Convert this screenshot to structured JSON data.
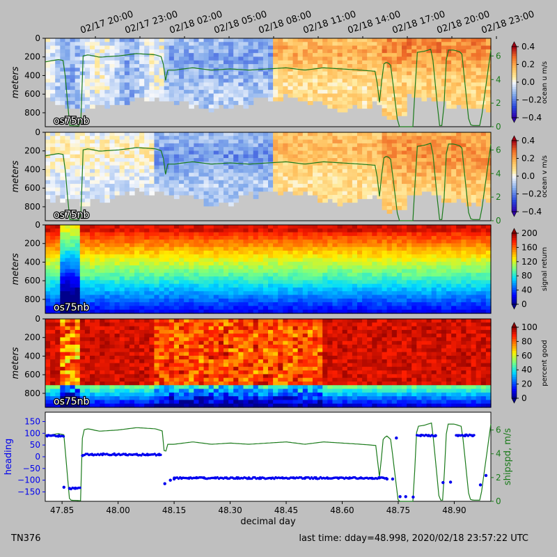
{
  "footer": {
    "cruise": "TN376",
    "last_time": "last time: dday=48.998,  2020/02/18 23:57:22 UTC"
  },
  "time_labels": [
    "02/17 20:00",
    "02/17 23:00",
    "02/18 02:00",
    "02/18 05:00",
    "02/18 08:00",
    "02/18 11:00",
    "02/18 14:00",
    "02/18 17:00",
    "02/18 20:00",
    "02/18 23:00"
  ],
  "panel_tag": "os75nb",
  "depth_ticks": [
    "0",
    "200",
    "400",
    "600",
    "800"
  ],
  "depth_ylabel": "meters",
  "xlabel": "decimal day",
  "xtick_labels": [
    "47.85",
    "48.00",
    "48.15",
    "48.30",
    "48.45",
    "48.60",
    "48.75",
    "48.90"
  ],
  "colorbars": [
    {
      "label": "ocean u m/s",
      "ticks": [
        "0.4",
        "0.2",
        "0.0",
        "−0.2",
        "−0.4"
      ],
      "cmap": "rdbu"
    },
    {
      "label": "ocean v m/s",
      "ticks": [
        "0.4",
        "0.2",
        "0.0",
        "−0.2",
        "−0.4"
      ],
      "cmap": "rdbu"
    },
    {
      "label": "signal return",
      "ticks": [
        "200",
        "160",
        "120",
        "80",
        "40",
        "0"
      ],
      "cmap": "jet"
    },
    {
      "label": "percent good",
      "ticks": [
        "100",
        "80",
        "60",
        "40",
        "20",
        "0"
      ],
      "cmap": "jet"
    }
  ],
  "shipspd_ticks": [
    "6",
    "4",
    "2",
    "0"
  ],
  "bottom_panel": {
    "left_label": "heading",
    "right_label": "shipspd, m/s",
    "left_ticks": [
      "150",
      "100",
      "50",
      "0",
      "−50",
      "−100",
      "−150"
    ],
    "right_ticks": [
      "6",
      "4",
      "2",
      "0"
    ]
  },
  "colors": {
    "heading": "#0000ee",
    "shipspd": "#1a7a1a",
    "background": "#bfbfbf",
    "nodata": "#c8c8c8"
  },
  "chart_data": [
    {
      "type": "heatmap",
      "ylabel": "meters",
      "colorbar": "ocean u m/s",
      "clim": [
        -0.4,
        0.4
      ],
      "ylim": [
        950,
        0
      ],
      "xlim": [
        47.805,
        48.998
      ]
    },
    {
      "type": "heatmap",
      "ylabel": "meters",
      "colorbar": "ocean v m/s",
      "clim": [
        -0.4,
        0.4
      ],
      "ylim": [
        950,
        0
      ],
      "xlim": [
        47.805,
        48.998
      ]
    },
    {
      "type": "heatmap",
      "ylabel": "meters",
      "colorbar": "signal return",
      "clim": [
        0,
        200
      ],
      "ylim": [
        950,
        0
      ],
      "xlim": [
        47.805,
        48.998
      ]
    },
    {
      "type": "heatmap",
      "ylabel": "meters",
      "colorbar": "percent good",
      "clim": [
        0,
        100
      ],
      "ylim": [
        950,
        0
      ],
      "xlim": [
        47.805,
        48.998
      ]
    },
    {
      "type": "scatter+line",
      "xlabel": "decimal day",
      "xlim": [
        47.805,
        48.998
      ],
      "ylim_heading": [
        -190,
        190
      ],
      "ylim_shipspd": [
        0,
        7.5
      ],
      "heading": {
        "name": "heading",
        "x": [
          47.81,
          47.84,
          47.855,
          47.87,
          47.885,
          47.905,
          47.93,
          47.96,
          47.99,
          48.02,
          48.05,
          48.08,
          48.11,
          48.125,
          48.14,
          48.15,
          48.17,
          48.19,
          48.21,
          48.23,
          48.26,
          48.29,
          48.32,
          48.35,
          48.38,
          48.41,
          48.44,
          48.47,
          48.5,
          48.53,
          48.56,
          48.59,
          48.62,
          48.65,
          48.68,
          48.7,
          48.72,
          48.735,
          48.745,
          48.755,
          48.77,
          48.79,
          48.81,
          48.83,
          48.85,
          48.87,
          48.89,
          48.91,
          48.93,
          48.95,
          48.97,
          48.985
        ],
        "y": [
          90,
          88,
          -130,
          -135,
          -135,
          5,
          10,
          12,
          12,
          10,
          10,
          8,
          10,
          -115,
          -100,
          -95,
          -92,
          -92,
          -90,
          -90,
          -90,
          -90,
          -92,
          -90,
          -90,
          -92,
          -90,
          -90,
          -92,
          -92,
          -90,
          -92,
          -90,
          -90,
          -92,
          -90,
          -95,
          -95,
          80,
          -170,
          -170,
          -172,
          90,
          90,
          90,
          -110,
          -108,
          90,
          92,
          90,
          -120,
          -80
        ]
      },
      "shipspd": {
        "name": "shipspd, m/s",
        "x": [
          47.805,
          47.84,
          47.855,
          47.87,
          47.9,
          47.905,
          47.92,
          47.95,
          48.0,
          48.05,
          48.1,
          48.12,
          48.125,
          48.13,
          48.15,
          48.2,
          48.25,
          48.3,
          48.35,
          48.4,
          48.45,
          48.5,
          48.55,
          48.6,
          48.65,
          48.69,
          48.7,
          48.71,
          48.72,
          48.73,
          48.75,
          48.76,
          48.78,
          48.79,
          48.8,
          48.82,
          48.84,
          48.86,
          48.87,
          48.88,
          48.9,
          48.92,
          48.94,
          48.95,
          48.97,
          48.998
        ],
        "y": [
          5.5,
          5.7,
          5.6,
          0.1,
          0.05,
          6.0,
          6.1,
          5.9,
          6.0,
          6.2,
          6.1,
          5.9,
          3.3,
          4.8,
          4.8,
          5.0,
          4.8,
          4.9,
          4.8,
          4.9,
          5.0,
          4.8,
          5.0,
          4.9,
          4.8,
          4.7,
          2.0,
          5.3,
          5.5,
          5.2,
          0.0,
          0.0,
          0.0,
          0.0,
          6.3,
          6.4,
          6.6,
          0.1,
          0.1,
          6.5,
          6.5,
          6.3,
          0.2,
          0.1,
          0.1,
          6.5
        ]
      }
    }
  ]
}
